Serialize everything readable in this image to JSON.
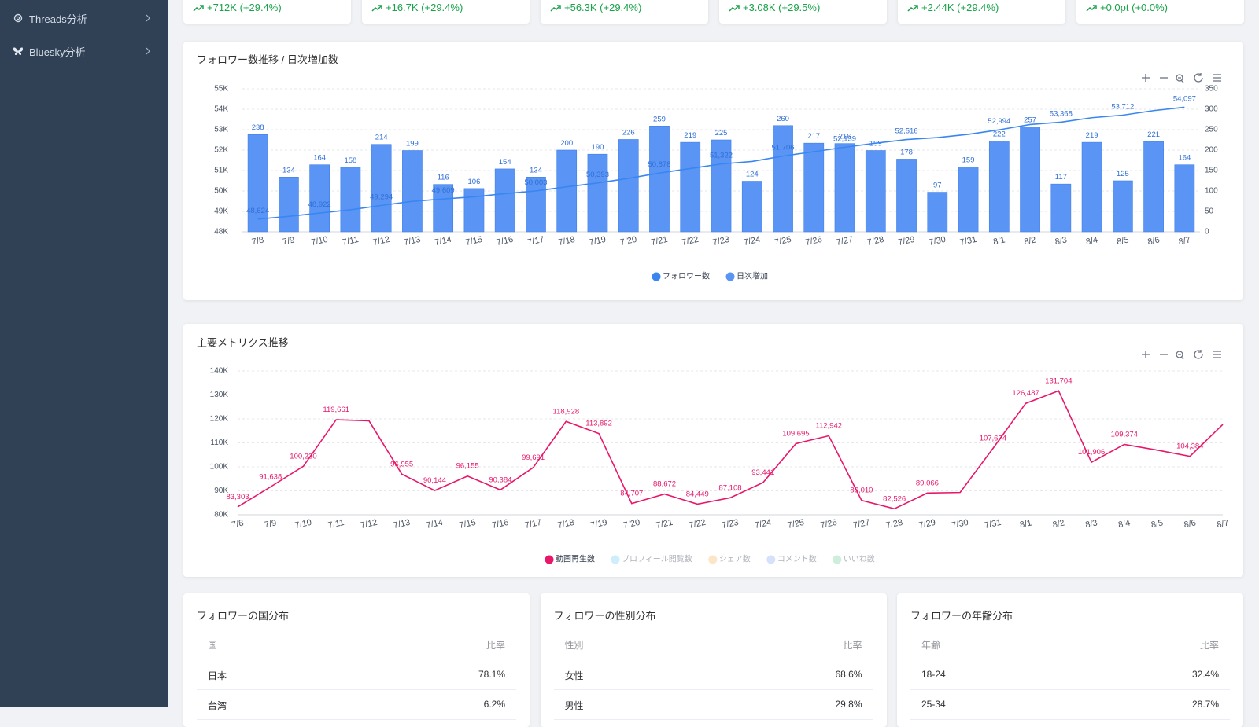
{
  "sidebar": {
    "items": [
      "Threads分析",
      "Bluesky分析"
    ]
  },
  "summary_cards": [
    "+712K (+29.4%)",
    "+16.7K (+29.4%)",
    "+56.3K (+29.4%)",
    "+3.08K (+29.5%)",
    "+2.44K (+29.4%)",
    "+0.0pt (+0.0%)"
  ],
  "chart_data": [
    {
      "type": "combo",
      "title": "フォロワー数推移 / 日次増加数",
      "categories": [
        "7/8",
        "7/9",
        "7/10",
        "7/11",
        "7/12",
        "7/13",
        "7/14",
        "7/15",
        "7/16",
        "7/17",
        "7/18",
        "7/19",
        "7/20",
        "7/21",
        "7/22",
        "7/23",
        "7/24",
        "7/25",
        "7/26",
        "7/27",
        "7/28",
        "7/29",
        "7/30",
        "7/31",
        "8/1",
        "8/2",
        "8/3",
        "8/4",
        "8/5",
        "8/6",
        "8/7"
      ],
      "series": [
        {
          "name": "フォロワー数",
          "type": "line",
          "color": "#3a86f0",
          "values": [
            48624,
            48758,
            48922,
            49080,
            49294,
            49493,
            49609,
            49715,
            49869,
            50003,
            50203,
            50393,
            50619,
            50878,
            51097,
            51322,
            51446,
            51706,
            51923,
            52139,
            52338,
            52516,
            52613,
            52772,
            52994,
            53251,
            53368,
            53587,
            53712,
            53933,
            54097
          ],
          "value_labels": [
            "48,624",
            null,
            "48,922",
            null,
            "49,294",
            null,
            "49,609",
            null,
            null,
            "50,003",
            null,
            "50,393",
            null,
            "50,878",
            null,
            "51,322",
            null,
            "51,706",
            null,
            "52,139",
            null,
            "52,516",
            null,
            null,
            "52,994",
            null,
            "53,368",
            null,
            "53,712",
            null,
            "54,097"
          ]
        },
        {
          "name": "日次増加",
          "type": "bar",
          "axis": "y2",
          "color": "#5a95f5",
          "values": [
            238,
            134,
            164,
            158,
            214,
            199,
            116,
            106,
            154,
            134,
            200,
            190,
            226,
            259,
            219,
            225,
            124,
            260,
            217,
            216,
            199,
            178,
            97,
            159,
            222,
            257,
            117,
            219,
            125,
            221,
            164
          ]
        }
      ],
      "ylim": [
        48000,
        55000
      ],
      "yticks": [
        {
          "value": 48000,
          "label": "48K"
        },
        {
          "value": 49000,
          "label": "49K"
        },
        {
          "value": 50000,
          "label": "50K"
        },
        {
          "value": 51000,
          "label": "51K"
        },
        {
          "value": 52000,
          "label": "52K"
        },
        {
          "value": 53000,
          "label": "53K"
        },
        {
          "value": 54000,
          "label": "54K"
        },
        {
          "value": 55000,
          "label": "55K"
        }
      ],
      "y2lim": [
        0,
        350
      ],
      "y2ticks": [
        0,
        50,
        100,
        150,
        200,
        250,
        300,
        350
      ],
      "grid": true,
      "legend": "bottom"
    },
    {
      "type": "line",
      "title": "主要メトリクス推移",
      "categories": [
        "7/8",
        "7/9",
        "7/10",
        "7/11",
        "7/12",
        "7/13",
        "7/14",
        "7/15",
        "7/16",
        "7/17",
        "7/18",
        "7/19",
        "7/20",
        "7/21",
        "7/22",
        "7/23",
        "7/24",
        "7/25",
        "7/26",
        "7/27",
        "7/28",
        "7/29",
        "7/30",
        "7/31",
        "8/1",
        "8/2",
        "8/3",
        "8/4",
        "8/5",
        "8/6",
        "8/7"
      ],
      "series": [
        {
          "name": "動画再生数",
          "color": "#e8176a",
          "values": [
            83303,
            91638,
            100230,
            119661,
            119200,
            96955,
            90144,
            96155,
            90384,
            99691,
            118928,
            113892,
            84707,
            88672,
            84449,
            87108,
            93441,
            109695,
            112942,
            86010,
            82526,
            89066,
            89300,
            107674,
            126487,
            131704,
            101906,
            109374,
            107000,
            104384,
            117700
          ],
          "value_labels": [
            "83,303",
            "91,638",
            "100,230",
            "119,661",
            null,
            "96,955",
            "90,144",
            "96,155",
            "90,384",
            "99,691",
            "118,928",
            "113,892",
            "84,707",
            "88,672",
            "84,449",
            "87,108",
            "93,441",
            "109,695",
            "112,942",
            "86,010",
            "82,526",
            "89,066",
            null,
            "107,674",
            "126,487",
            "131,704",
            "101,906",
            "109,374",
            null,
            "104,384",
            null
          ]
        }
      ],
      "hidden_series": [
        {
          "name": "プロフィール閲覧数",
          "color": "#cdeefa"
        },
        {
          "name": "シェア数",
          "color": "#fde6c8"
        },
        {
          "name": "コメント数",
          "color": "#d6e2fb"
        },
        {
          "name": "いいね数",
          "color": "#cdeedd"
        }
      ],
      "ylim": [
        80000,
        140000
      ],
      "yticks": [
        {
          "value": 80000,
          "label": "80K"
        },
        {
          "value": 90000,
          "label": "90K"
        },
        {
          "value": 100000,
          "label": "100K"
        },
        {
          "value": 110000,
          "label": "110K"
        },
        {
          "value": 120000,
          "label": "120K"
        },
        {
          "value": 130000,
          "label": "130K"
        },
        {
          "value": 140000,
          "label": "140K"
        }
      ],
      "grid": true,
      "legend": "bottom"
    }
  ],
  "tables": [
    {
      "title": "フォロワーの国分布",
      "headers": [
        "国",
        "比率"
      ],
      "rows": [
        [
          "日本",
          "78.1%"
        ],
        [
          "台湾",
          "6.2%"
        ]
      ]
    },
    {
      "title": "フォロワーの性別分布",
      "headers": [
        "性別",
        "比率"
      ],
      "rows": [
        [
          "女性",
          "68.6%"
        ],
        [
          "男性",
          "29.8%"
        ]
      ]
    },
    {
      "title": "フォロワーの年齢分布",
      "headers": [
        "年齢",
        "比率"
      ],
      "rows": [
        [
          "18-24",
          "32.4%"
        ],
        [
          "25-34",
          "28.7%"
        ]
      ]
    }
  ]
}
